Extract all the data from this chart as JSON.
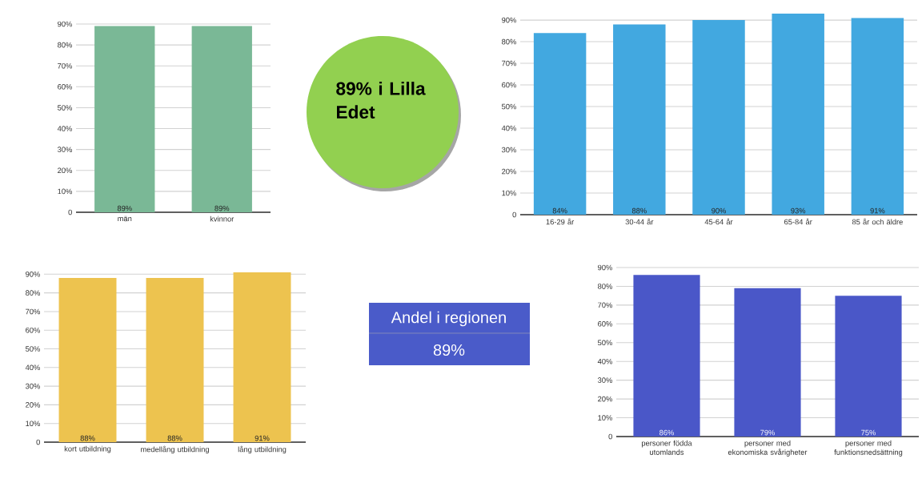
{
  "chart_data": [
    {
      "type": "bar",
      "categories": [
        "män",
        "kvinnor"
      ],
      "values": [
        89,
        89
      ],
      "value_labels": [
        "89%",
        "89%"
      ],
      "color": "#7ab896",
      "ylim": [
        0,
        90
      ],
      "yticks": [
        {
          "value": 0,
          "label": "0"
        },
        {
          "value": 10,
          "label": "10%"
        },
        {
          "value": 20,
          "label": "20%"
        },
        {
          "value": 30,
          "label": "30%"
        },
        {
          "value": 40,
          "label": "40%"
        },
        {
          "value": 50,
          "label": "50%"
        },
        {
          "value": 60,
          "label": "60%"
        },
        {
          "value": 70,
          "label": "70%"
        },
        {
          "value": 80,
          "label": "80%"
        },
        {
          "value": 90,
          "label": "90%"
        }
      ],
      "grid": "y"
    },
    {
      "type": "bar",
      "categories": [
        "16-29 år",
        "30-44 år",
        "45-64 år",
        "65-84 år",
        "85 år och äldre"
      ],
      "values": [
        84,
        88,
        90,
        93,
        91
      ],
      "value_labels": [
        "84%",
        "88%",
        "90%",
        "93%",
        "91%"
      ],
      "color": "#42a8e0",
      "ylim": [
        0,
        93
      ],
      "yticks": [
        {
          "value": 0,
          "label": "0"
        },
        {
          "value": 10,
          "label": "10%"
        },
        {
          "value": 20,
          "label": "20%"
        },
        {
          "value": 30,
          "label": "30%"
        },
        {
          "value": 40,
          "label": "40%"
        },
        {
          "value": 50,
          "label": "50%"
        },
        {
          "value": 60,
          "label": "60%"
        },
        {
          "value": 70,
          "label": "70%"
        },
        {
          "value": 80,
          "label": "80%"
        },
        {
          "value": 90,
          "label": "90%"
        }
      ],
      "grid": "y"
    },
    {
      "type": "other",
      "title": "89% i Lilla Edet",
      "color": "#92d050"
    },
    {
      "type": "bar",
      "categories": [
        "kort utbildning",
        "medellång utbildning",
        "lång utbildning"
      ],
      "values": [
        88,
        88,
        91
      ],
      "value_labels": [
        "88%",
        "88%",
        "91%"
      ],
      "color": "#edc34f",
      "ylim": [
        0,
        91
      ],
      "yticks": [
        {
          "value": 0,
          "label": "0"
        },
        {
          "value": 10,
          "label": "10%"
        },
        {
          "value": 20,
          "label": "20%"
        },
        {
          "value": 30,
          "label": "30%"
        },
        {
          "value": 40,
          "label": "40%"
        },
        {
          "value": 50,
          "label": "50%"
        },
        {
          "value": 60,
          "label": "60%"
        },
        {
          "value": 70,
          "label": "70%"
        },
        {
          "value": 80,
          "label": "80%"
        },
        {
          "value": 90,
          "label": "90%"
        }
      ],
      "grid": "y"
    },
    {
      "type": "other",
      "title": "Andel i regionen",
      "subtitle": "89%",
      "color": "#4a5bc9"
    },
    {
      "type": "bar",
      "categories": [
        "personer födda utomlands",
        "personer med ekonomiska svårigheter",
        "personer med funktionsnedsättning"
      ],
      "values": [
        86,
        79,
        75
      ],
      "value_labels": [
        "86%",
        "79%",
        "75%"
      ],
      "color": "#4a57c8",
      "ylim": [
        0,
        90
      ],
      "yticks": [
        {
          "value": 0,
          "label": "0"
        },
        {
          "value": 10,
          "label": "10%"
        },
        {
          "value": 20,
          "label": "20%"
        },
        {
          "value": 30,
          "label": "30%"
        },
        {
          "value": 40,
          "label": "40%"
        },
        {
          "value": 50,
          "label": "50%"
        },
        {
          "value": 60,
          "label": "60%"
        },
        {
          "value": 70,
          "label": "70%"
        },
        {
          "value": 80,
          "label": "80%"
        },
        {
          "value": 90,
          "label": "90%"
        }
      ],
      "grid": "y"
    }
  ]
}
